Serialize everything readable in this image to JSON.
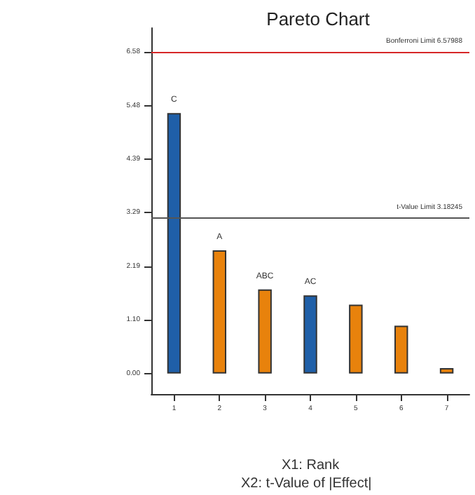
{
  "chart_data": {
    "type": "bar",
    "title": "Pareto Chart",
    "xlabel": "X1: Rank",
    "annotations": [
      "X2: t-Value of |Effect|"
    ],
    "categories": [
      "1",
      "2",
      "3",
      "4",
      "5",
      "6",
      "7"
    ],
    "values": [
      5.33,
      2.52,
      1.72,
      1.6,
      1.41,
      0.98,
      0.11
    ],
    "colors": [
      "#1f5fa8",
      "#e8820c",
      "#e8820c",
      "#1f5fa8",
      "#e8820c",
      "#e8820c",
      "#e8820c"
    ],
    "value_labels": [
      "C",
      "A",
      "ABC",
      "AC",
      null,
      null,
      null
    ],
    "ylim": [
      -0.42,
      7.07
    ],
    "yticks": [
      {
        "value": 0,
        "label": "0.00"
      },
      {
        "value": 1.1,
        "label": "1.10"
      },
      {
        "value": 2.19,
        "label": "2.19"
      },
      {
        "value": 3.29,
        "label": "3.29"
      },
      {
        "value": 4.39,
        "label": "4.39"
      },
      {
        "value": 5.48,
        "label": "5.48"
      },
      {
        "value": 6.58,
        "label": "6.58"
      }
    ],
    "ref_lines": [
      {
        "axis": "y",
        "value": 6.58,
        "label": "Bonferroni Limit 6.57988",
        "color": "#d62728"
      },
      {
        "axis": "y",
        "value": 3.18,
        "label": "t-Value Limit 3.18245",
        "color": "#555555"
      }
    ],
    "grid": false
  }
}
